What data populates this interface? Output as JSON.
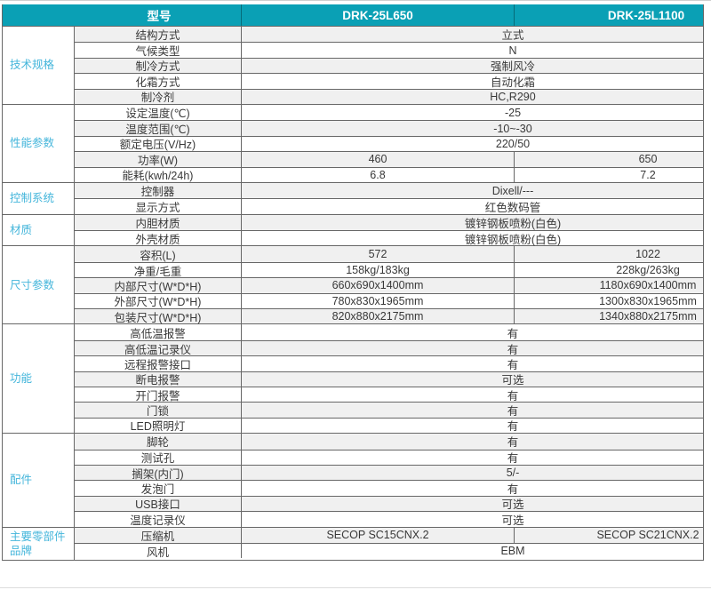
{
  "colors": {
    "header_bg": "#0AA0B5",
    "header_text": "#FFFFFF",
    "category_text": "#45B6DB",
    "row_alt_bg": "#F0F0F0",
    "grid_line": "#676767"
  },
  "header": {
    "model_label": "型号",
    "models": [
      "DRK-25L650",
      "DRK-25L1100"
    ]
  },
  "sections": [
    {
      "category": "技术规格",
      "rows": [
        {
          "label": "结构方式",
          "value": "立式"
        },
        {
          "label": "气候类型",
          "value": "N"
        },
        {
          "label": "制冷方式",
          "value": "强制风冷"
        },
        {
          "label": "化霜方式",
          "value": "自动化霜"
        },
        {
          "label": "制冷剂",
          "value": "HC,R290"
        }
      ]
    },
    {
      "category": "性能参数",
      "rows": [
        {
          "label": "设定温度(℃)",
          "value": "-25"
        },
        {
          "label": "温度范围(℃)",
          "value": "-10~-30"
        },
        {
          "label": "额定电压(V/Hz)",
          "value": "220/50"
        },
        {
          "label": "功率(W)",
          "values": [
            "460",
            "650"
          ]
        },
        {
          "label": "能耗(kwh/24h)",
          "values": [
            "6.8",
            "7.2"
          ]
        }
      ]
    },
    {
      "category": "控制系统",
      "rows": [
        {
          "label": "控制器",
          "value": "Dixell/---"
        },
        {
          "label": "显示方式",
          "value": "红色数码管"
        }
      ]
    },
    {
      "category": "材质",
      "rows": [
        {
          "label": "内胆材质",
          "value": "镀锌钢板喷粉(白色)"
        },
        {
          "label": "外壳材质",
          "value": "镀锌钢板喷粉(白色)"
        }
      ]
    },
    {
      "category": "尺寸参数",
      "rows": [
        {
          "label": "容积(L)",
          "values": [
            "572",
            "1022"
          ]
        },
        {
          "label": "净重/毛重",
          "values": [
            "158kg/183kg",
            "228kg/263kg"
          ]
        },
        {
          "label": "内部尺寸(W*D*H)",
          "values": [
            "660x690x1400mm",
            "1180x690x1400mm"
          ]
        },
        {
          "label": "外部尺寸(W*D*H)",
          "values": [
            "780x830x1965mm",
            "1300x830x1965mm"
          ]
        },
        {
          "label": "包装尺寸(W*D*H)",
          "values": [
            "820x880x2175mm",
            "1340x880x2175mm"
          ]
        }
      ]
    },
    {
      "category": "功能",
      "rows": [
        {
          "label": "高低温报警",
          "value": "有"
        },
        {
          "label": "高低温记录仪",
          "value": "有"
        },
        {
          "label": "远程报警接口",
          "value": "有"
        },
        {
          "label": "断电报警",
          "value": "可选"
        },
        {
          "label": "开门报警",
          "value": "有"
        },
        {
          "label": "门锁",
          "value": "有"
        },
        {
          "label": "LED照明灯",
          "value": "有"
        }
      ]
    },
    {
      "category": "配件",
      "rows": [
        {
          "label": "脚轮",
          "value": "有"
        },
        {
          "label": "测试孔",
          "value": "有"
        },
        {
          "label": "搁架(内门)",
          "value": "5/-"
        },
        {
          "label": "发泡门",
          "value": "有"
        },
        {
          "label": "USB接口",
          "value": "可选"
        },
        {
          "label": "温度记录仪",
          "value": "可选"
        }
      ]
    },
    {
      "category": "主要零部件品牌",
      "rows": [
        {
          "label": "压缩机",
          "values": [
            "SECOP SC15CNX.2",
            "SECOP SC21CNX.2"
          ]
        },
        {
          "label": "风机",
          "value": "EBM"
        }
      ]
    }
  ]
}
